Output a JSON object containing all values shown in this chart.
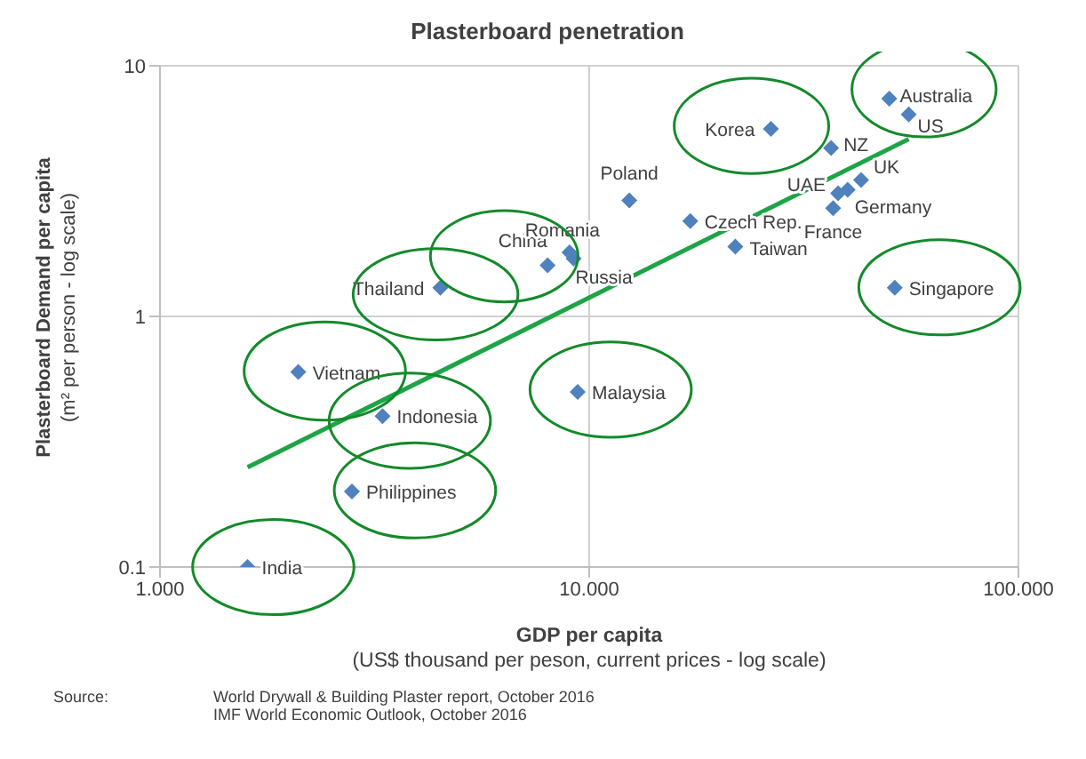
{
  "chart_data": {
    "type": "scatter",
    "title": "Plasterboard penetration",
    "xlabel": "GDP per capita\n(US$ thousand per peson, current prices - log scale)",
    "ylabel": "Plasterboard Demand per capita\n(m² per person - log scale)",
    "log": "xy",
    "grid": true,
    "legend": false,
    "marker": "diamond",
    "xlim": [
      1,
      100
    ],
    "xticks": [
      {
        "value": 1,
        "label": "1.000"
      },
      {
        "value": 10,
        "label": "10.000"
      },
      {
        "value": 100,
        "label": "100.000"
      }
    ],
    "ylim": [
      0.1,
      10
    ],
    "yticks": [
      0.1,
      1,
      10
    ],
    "series": [
      {
        "color": "#4f81bd",
        "x": [
          1.6,
          2.8,
          3.3,
          2.1,
          4.5,
          8,
          9,
          9.2,
          9.4,
          12.4,
          17.2,
          21.9,
          26.5,
          36.6,
          38,
          40,
          43,
          37,
          50,
          55.5,
          51.5
        ],
        "values": [
          0.1,
          0.2,
          0.4,
          0.6,
          1.3,
          1.6,
          1.8,
          1.7,
          0.5,
          2.9,
          2.4,
          1.9,
          5.6,
          4.7,
          3.1,
          3.2,
          3.5,
          2.7,
          7.4,
          6.4,
          1.3
        ]
      },
      {
        "type": "line",
        "color": "#1ea446",
        "marker": "none",
        "x": [
          1.6,
          55.5
        ],
        "values": [
          0.25,
          5.1
        ]
      }
    ],
    "annotations": [
      {
        "text": "India",
        "x": 1.6,
        "y": 0.1
      },
      {
        "text": "Philippines",
        "x": 2.8,
        "y": 0.2
      },
      {
        "text": "Indonesia",
        "x": 3.3,
        "y": 0.4
      },
      {
        "text": "Vietnam",
        "x": 2.1,
        "y": 0.6
      },
      {
        "text": "Thailand",
        "x": 4.5,
        "y": 1.3
      },
      {
        "text": "China",
        "x": 8,
        "y": 1.6
      },
      {
        "text": "Romania",
        "x": 9,
        "y": 1.8
      },
      {
        "text": "Russia",
        "x": 9.2,
        "y": 1.7
      },
      {
        "text": "Malaysia",
        "x": 9.4,
        "y": 0.5
      },
      {
        "text": "Poland",
        "x": 12.4,
        "y": 2.9
      },
      {
        "text": "Czech Rep.",
        "x": 17.2,
        "y": 2.4
      },
      {
        "text": "Taiwan",
        "x": 21.9,
        "y": 1.9
      },
      {
        "text": "Korea",
        "x": 26.5,
        "y": 5.6
      },
      {
        "text": "NZ",
        "x": 36.6,
        "y": 4.7
      },
      {
        "text": "UAE",
        "x": 38,
        "y": 3.1
      },
      {
        "text": "Germany",
        "x": 40,
        "y": 3.2
      },
      {
        "text": "UK",
        "x": 43,
        "y": 3.5
      },
      {
        "text": "France",
        "x": 37,
        "y": 2.7
      },
      {
        "text": "Australia",
        "x": 50,
        "y": 7.4
      },
      {
        "text": "US",
        "x": 55.5,
        "y": 6.4
      },
      {
        "text": "Singapore",
        "x": 51.5,
        "y": 1.3
      },
      "Source:",
      "World Drywall & Building Plaster report, October 2016",
      "IMF World Economic Outlook, October 2016"
    ]
  }
}
